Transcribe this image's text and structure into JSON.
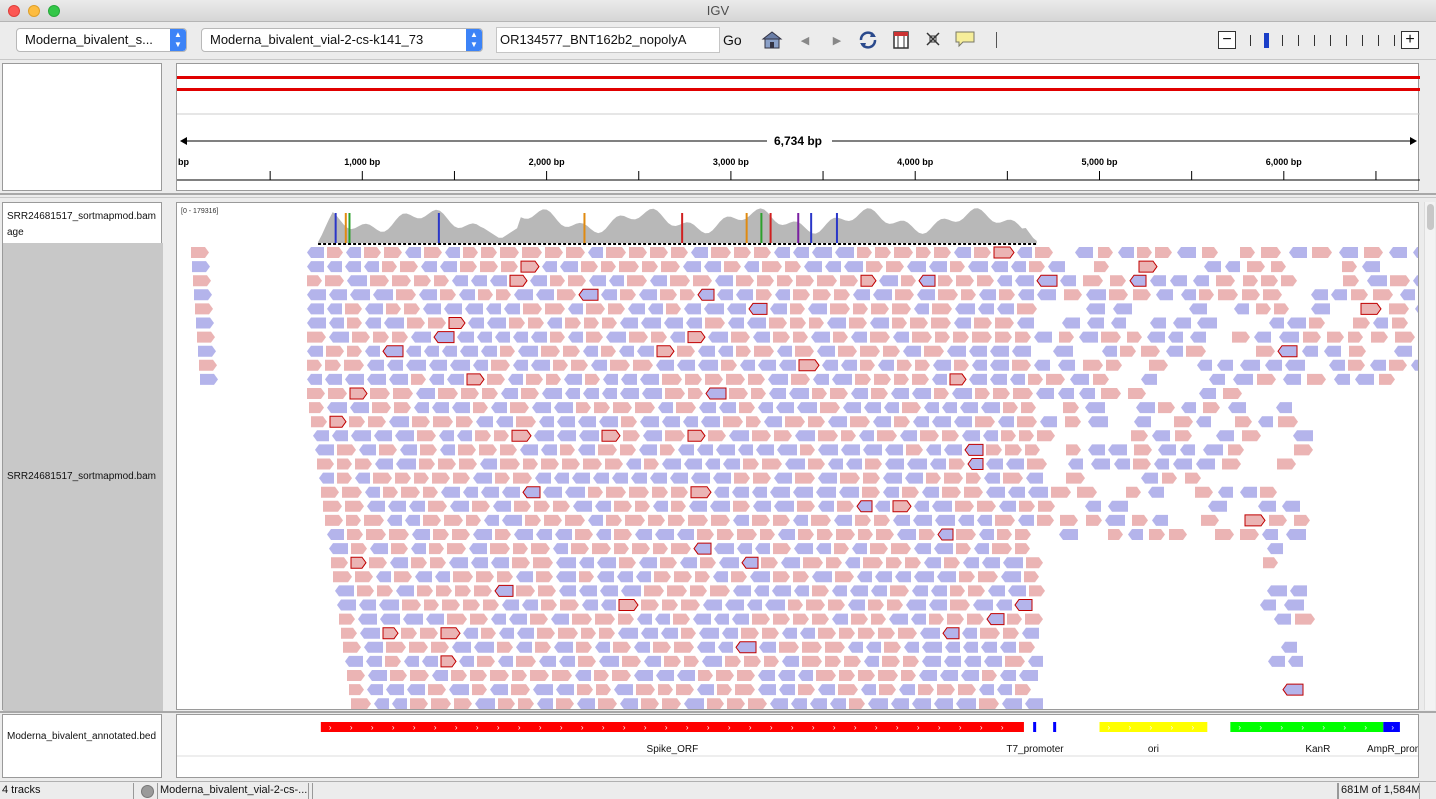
{
  "window": {
    "title": "IGV"
  },
  "toolbar": {
    "genome_value": "Moderna_bivalent_s...",
    "chrom_value": "Moderna_bivalent_vial-2-cs-k141_73",
    "locus_value": "OR134577_BNT162b2_nopolyA",
    "go_label": "Go",
    "icons": [
      "home-icon",
      "back-arrow-icon",
      "forward-arrow-icon",
      "refresh-icon",
      "region-of-interest-icon",
      "resize-to-fit-icon",
      "popup-text-icon"
    ],
    "zoom_minus": "−",
    "zoom_plus": "+"
  },
  "ruler": {
    "span_label": "6,734 bp",
    "start_label": "bp",
    "ticks": [
      "1,000 bp",
      "2,000 bp",
      "3,000 bp",
      "4,000 bp",
      "5,000 bp",
      "6,000 bp"
    ]
  },
  "coverage": {
    "track_name": "SRR24681517_sortmapmod.bam\nage",
    "track_name_line1": "SRR24681517_sortmapmod.bam",
    "track_name_line2": "age",
    "range_label": "[0 - 179316]"
  },
  "alignment": {
    "track_name": "SRR24681517_sortmapmod.bam",
    "colors": {
      "forward": "#ebb4b4",
      "reverse": "#b4b4eb",
      "outline": "#c00000"
    }
  },
  "features": {
    "track_name": "Moderna_bivalent_annotated.bed",
    "items": [
      {
        "name": "Spike_ORF",
        "color": "#ff0000",
        "start": 775,
        "end": 4590
      },
      {
        "name": "T7_promoter",
        "color": "#0000ff",
        "start": 4640,
        "end": 4660
      },
      {
        "name": "ori",
        "color": "#ffff00",
        "start": 5000,
        "end": 5585
      },
      {
        "name": "KanR",
        "color": "#00ff00",
        "start": 5710,
        "end": 6540
      },
      {
        "name": "AmpR_promot",
        "color": "#0000ff",
        "start": 6540,
        "end": 6630
      }
    ]
  },
  "status": {
    "tracks": "4 tracks",
    "locus": "Moderna_bivalent_vial-2-cs-...",
    "memory": "681M of 1,584M"
  }
}
